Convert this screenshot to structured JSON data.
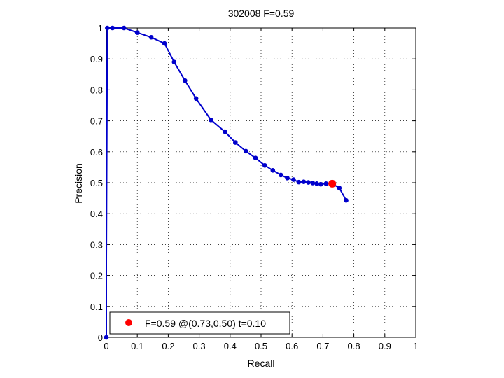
{
  "chart_data": {
    "type": "line",
    "title": "302008 F=0.59",
    "xlabel": "Recall",
    "ylabel": "Precision",
    "xlim": [
      0,
      1
    ],
    "ylim": [
      0,
      1
    ],
    "xticks": [
      "0",
      "0.1",
      "0.2",
      "0.3",
      "0.4",
      "0.5",
      "0.6",
      "0.7",
      "0.8",
      "0.9",
      "1"
    ],
    "yticks": [
      "0",
      "0.1",
      "0.2",
      "0.3",
      "0.4",
      "0.5",
      "0.6",
      "0.7",
      "0.8",
      "0.9",
      "1"
    ],
    "grid": true,
    "grid_style": "dotted",
    "legend_position": "bottom-left",
    "series": [
      {
        "color": "#0000cc",
        "line_points": [
          {
            "x": 0.0,
            "y": 0.0
          },
          {
            "x": 0.0,
            "y": 0.25
          },
          {
            "x": 0.002,
            "y": 0.75
          },
          {
            "x": 0.003,
            "y": 1.0
          },
          {
            "x": 0.006,
            "y": 1.0
          },
          {
            "x": 0.02,
            "y": 1.0
          },
          {
            "x": 0.057,
            "y": 1.0
          },
          {
            "x": 0.1,
            "y": 0.985
          },
          {
            "x": 0.145,
            "y": 0.97
          },
          {
            "x": 0.188,
            "y": 0.95
          },
          {
            "x": 0.219,
            "y": 0.89
          },
          {
            "x": 0.254,
            "y": 0.83
          },
          {
            "x": 0.29,
            "y": 0.772
          },
          {
            "x": 0.338,
            "y": 0.703
          },
          {
            "x": 0.383,
            "y": 0.665
          },
          {
            "x": 0.417,
            "y": 0.63
          },
          {
            "x": 0.451,
            "y": 0.602
          },
          {
            "x": 0.482,
            "y": 0.58
          },
          {
            "x": 0.512,
            "y": 0.556
          },
          {
            "x": 0.538,
            "y": 0.54
          },
          {
            "x": 0.564,
            "y": 0.525
          },
          {
            "x": 0.585,
            "y": 0.515
          },
          {
            "x": 0.605,
            "y": 0.51
          },
          {
            "x": 0.622,
            "y": 0.502
          },
          {
            "x": 0.638,
            "y": 0.503
          },
          {
            "x": 0.653,
            "y": 0.501
          },
          {
            "x": 0.667,
            "y": 0.499
          },
          {
            "x": 0.68,
            "y": 0.497
          },
          {
            "x": 0.693,
            "y": 0.495
          },
          {
            "x": 0.71,
            "y": 0.497
          },
          {
            "x": 0.73,
            "y": 0.497
          },
          {
            "x": 0.753,
            "y": 0.483
          },
          {
            "x": 0.775,
            "y": 0.443
          }
        ],
        "marker_points": [
          {
            "x": 0.0,
            "y": 0.0
          },
          {
            "x": 0.003,
            "y": 1.0
          },
          {
            "x": 0.02,
            "y": 1.0
          },
          {
            "x": 0.057,
            "y": 1.0
          },
          {
            "x": 0.1,
            "y": 0.985
          },
          {
            "x": 0.145,
            "y": 0.97
          },
          {
            "x": 0.188,
            "y": 0.95
          },
          {
            "x": 0.219,
            "y": 0.89
          },
          {
            "x": 0.254,
            "y": 0.83
          },
          {
            "x": 0.29,
            "y": 0.772
          },
          {
            "x": 0.338,
            "y": 0.703
          },
          {
            "x": 0.383,
            "y": 0.665
          },
          {
            "x": 0.417,
            "y": 0.63
          },
          {
            "x": 0.451,
            "y": 0.602
          },
          {
            "x": 0.482,
            "y": 0.58
          },
          {
            "x": 0.512,
            "y": 0.556
          },
          {
            "x": 0.538,
            "y": 0.54
          },
          {
            "x": 0.564,
            "y": 0.525
          },
          {
            "x": 0.585,
            "y": 0.515
          },
          {
            "x": 0.605,
            "y": 0.51
          },
          {
            "x": 0.622,
            "y": 0.502
          },
          {
            "x": 0.638,
            "y": 0.503
          },
          {
            "x": 0.653,
            "y": 0.501
          },
          {
            "x": 0.667,
            "y": 0.499
          },
          {
            "x": 0.68,
            "y": 0.497
          },
          {
            "x": 0.693,
            "y": 0.495
          },
          {
            "x": 0.71,
            "y": 0.497
          },
          {
            "x": 0.753,
            "y": 0.483
          },
          {
            "x": 0.775,
            "y": 0.443
          }
        ]
      }
    ],
    "highlight_point": {
      "x": 0.73,
      "y": 0.497,
      "color": "#ff0000"
    },
    "legend": {
      "label": "F=0.59 @(0.73,0.50) t=0.10",
      "marker_color": "#ff0000"
    }
  }
}
